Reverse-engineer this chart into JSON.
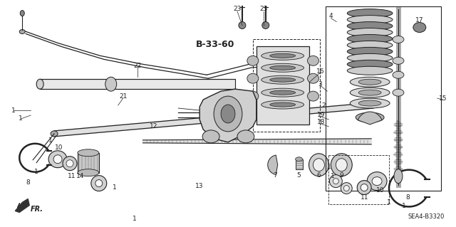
{
  "bg_color": "#ffffff",
  "fig_width": 6.4,
  "fig_height": 3.19,
  "diagram_code": "SEA4-B3320",
  "ref_label": "B-33-60",
  "fr_label": "FR.",
  "text_color": "#222222",
  "label_fontsize": 6.5,
  "ref_fontsize": 8.5
}
